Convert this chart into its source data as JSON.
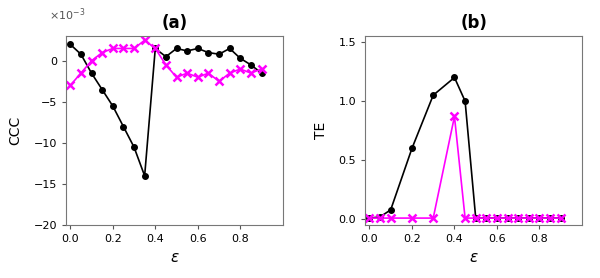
{
  "ccc_eps": [
    0.0,
    0.05,
    0.1,
    0.15,
    0.2,
    0.25,
    0.3,
    0.35,
    0.4,
    0.45,
    0.5,
    0.55,
    0.6,
    0.65,
    0.7,
    0.75,
    0.8,
    0.85,
    0.9
  ],
  "ccc_black": [
    2.0,
    0.8,
    -1.5,
    -3.5,
    -5.5,
    -8.0,
    -10.5,
    -14.0,
    1.5,
    0.5,
    1.5,
    1.2,
    1.5,
    1.0,
    0.8,
    1.5,
    0.3,
    -0.5,
    -1.5
  ],
  "ccc_mag": [
    -3.0,
    -1.5,
    0.0,
    1.0,
    1.5,
    1.5,
    1.5,
    2.5,
    1.5,
    -0.5,
    -2.0,
    -1.5,
    -2.0,
    -1.5,
    -2.5,
    -1.5,
    -1.0,
    -1.5,
    -1.0
  ],
  "te_eps": [
    0.0,
    0.05,
    0.1,
    0.2,
    0.3,
    0.4,
    0.45,
    0.5,
    0.55,
    0.6,
    0.65,
    0.7,
    0.75,
    0.8,
    0.85,
    0.9
  ],
  "te_black": [
    0.01,
    0.02,
    0.08,
    0.6,
    1.05,
    1.2,
    1.0,
    0.01,
    0.01,
    0.01,
    0.01,
    0.01,
    0.01,
    0.01,
    0.01,
    0.01
  ],
  "te_mag": [
    0.01,
    0.01,
    0.01,
    0.01,
    0.01,
    0.87,
    0.01,
    0.01,
    0.01,
    0.01,
    0.01,
    0.01,
    0.01,
    0.01,
    0.01,
    0.01
  ],
  "black_color": "#000000",
  "magenta_color": "#ff00ff",
  "title_a": "(a)",
  "title_b": "(b)",
  "ylabel_a": "CCC",
  "ylabel_b": "TE",
  "xlabel": "ε",
  "ylim_a": [
    -20,
    3
  ],
  "ylim_b": [
    -0.05,
    1.55
  ],
  "xlim": [
    -0.02,
    1.0
  ],
  "xticks": [
    0,
    0.2,
    0.4,
    0.6,
    0.8
  ],
  "yticks_a": [
    -20,
    -15,
    -10,
    -5,
    0
  ],
  "yticks_b": [
    0,
    0.5,
    1.0,
    1.5
  ]
}
